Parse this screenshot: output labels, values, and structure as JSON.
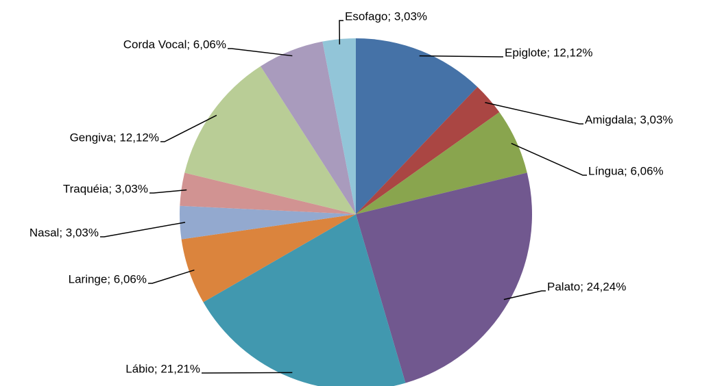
{
  "chart_data": {
    "type": "pie",
    "values": [
      12.12,
      3.03,
      6.06,
      24.24,
      21.21,
      6.06,
      3.03,
      3.03,
      12.12,
      6.06,
      3.03
    ],
    "value_labels": [
      "Epiglote; 12,12%",
      "Amigdala; 3,03%",
      "Língua; 6,06%",
      "Palato; 24,24%",
      "Lábio; 21,21%",
      "Laringe; 6,06%",
      "Nasal; 3,03%",
      "Traquéia; 3,03%",
      "Gengiva; 12,12%",
      "Corda Vocal; 6,06%",
      "Esofago; 3,03%"
    ],
    "colors": [
      "#4572a7",
      "#aa4643",
      "#89a54e",
      "#71588f",
      "#4198af",
      "#db843d",
      "#93a9cf",
      "#d19392",
      "#b9cd96",
      "#a99bbd",
      "#92c5d8"
    ]
  }
}
